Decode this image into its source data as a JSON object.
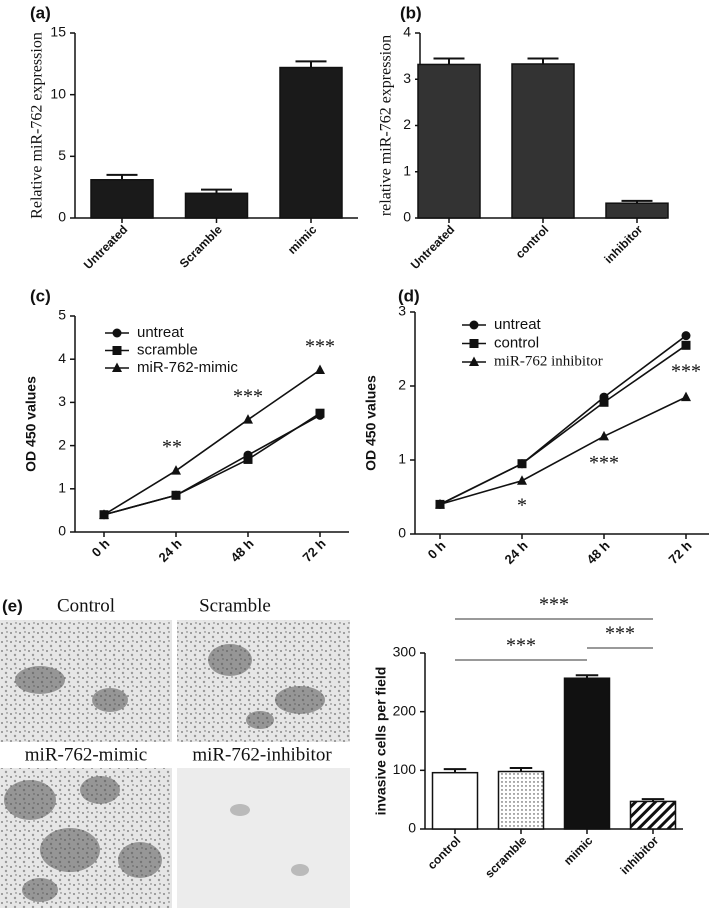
{
  "chart_data": [
    {
      "type": "bar",
      "panel_label": "(a)",
      "ylabel": "Relative miR-762 expression",
      "categories": [
        "Untreated",
        "Scramble",
        "mimic"
      ],
      "values": [
        3.1,
        2.0,
        12.2
      ],
      "errors": [
        0.4,
        0.3,
        0.5
      ],
      "color": "#1a1a1a",
      "ylim": [
        0,
        15
      ],
      "yticks": [
        0,
        5,
        10,
        15
      ]
    },
    {
      "type": "bar",
      "panel_label": "(b)",
      "ylabel": "relative miR-762 expression",
      "categories": [
        "Untreated",
        "control",
        "inhibitor"
      ],
      "values": [
        3.32,
        3.33,
        0.32
      ],
      "errors": [
        0.13,
        0.12,
        0.05
      ],
      "color": "#333333",
      "ylim": [
        0,
        4
      ],
      "yticks": [
        0,
        1,
        2,
        3,
        4
      ]
    },
    {
      "type": "line",
      "panel_label": "(c)",
      "ylabel": "OD 450 values",
      "categories": [
        "0 h",
        "24 h",
        "48 h",
        "72 h"
      ],
      "series": [
        {
          "name": "untreat",
          "color": "#111111",
          "marker": "circle",
          "values": [
            0.4,
            0.85,
            1.78,
            2.7
          ]
        },
        {
          "name": "scramble",
          "color": "#111111",
          "marker": "square",
          "values": [
            0.4,
            0.85,
            1.68,
            2.75
          ]
        },
        {
          "name": "miR-762-mimic",
          "color": "#111111",
          "marker": "triangle",
          "values": [
            0.4,
            1.42,
            2.6,
            3.75
          ]
        }
      ],
      "annotations": [
        "**",
        "***",
        "***"
      ],
      "ylim": [
        0,
        5
      ],
      "yticks": [
        0,
        1,
        2,
        3,
        4,
        5
      ]
    },
    {
      "type": "line",
      "panel_label": "(d)",
      "ylabel": "OD 450 values",
      "categories": [
        "0 h",
        "24 h",
        "48 h",
        "72 h"
      ],
      "series": [
        {
          "name": "untreat",
          "color": "#111111",
          "marker": "circle",
          "values": [
            0.4,
            0.95,
            1.85,
            2.68
          ]
        },
        {
          "name": "control",
          "color": "#111111",
          "marker": "square",
          "values": [
            0.4,
            0.95,
            1.78,
            2.55
          ]
        },
        {
          "name": "miR-762 inhibitor",
          "color": "#111111",
          "marker": "triangle",
          "values": [
            0.4,
            0.72,
            1.32,
            1.85
          ]
        }
      ],
      "annotations": [
        "*",
        "***",
        "***"
      ],
      "ylim": [
        0,
        3
      ],
      "yticks": [
        0,
        1,
        2,
        3
      ]
    },
    {
      "type": "bar",
      "panel_label": "(e)",
      "ylabel": "invasive cells per field",
      "categories": [
        "control",
        "scramble",
        "mimic",
        "inhibitor"
      ],
      "values": [
        96,
        98,
        257,
        47
      ],
      "errors": [
        6,
        6,
        5,
        4
      ],
      "bar_fills": [
        "white",
        "dots",
        "black",
        "hatch"
      ],
      "color": "#111111",
      "annotations": [
        "***",
        "***",
        "***"
      ],
      "ylim": [
        0,
        300
      ],
      "yticks": [
        0,
        100,
        200,
        300
      ]
    }
  ],
  "micrographs": [
    "Control",
    "Scramble",
    "miR-762-mimic",
    "miR-762-inhibitor"
  ]
}
